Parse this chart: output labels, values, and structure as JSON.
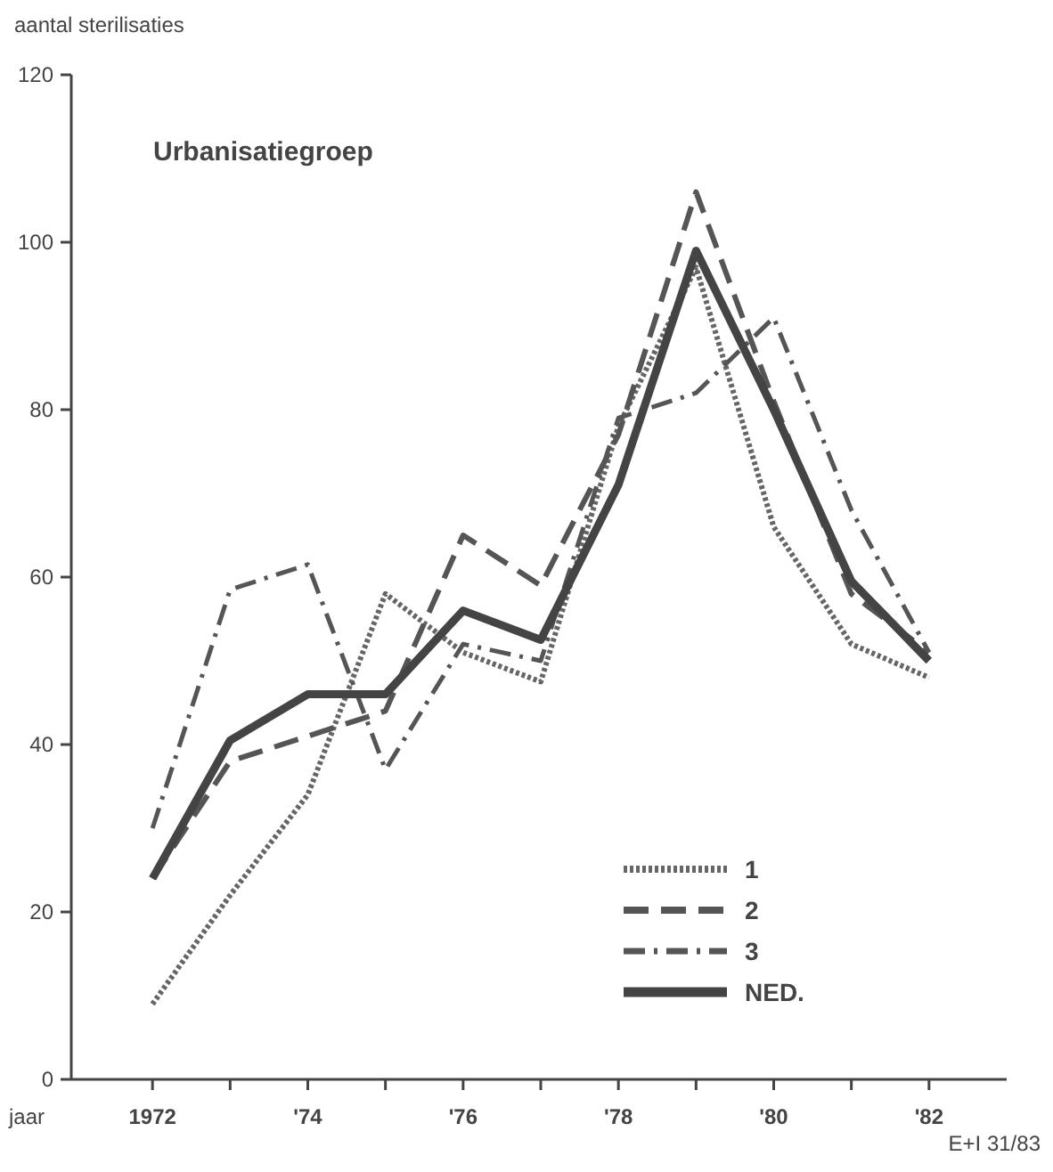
{
  "chart_data": {
    "type": "line",
    "ylabel": "aantal sterilisaties",
    "xlabel": "jaar",
    "legend_title": "Urbanisatiegroep",
    "x": [
      1972,
      1973,
      1974,
      1975,
      1976,
      1977,
      1978,
      1979,
      1980,
      1981,
      1982
    ],
    "xlim": [
      1971,
      1983
    ],
    "xticks": [
      {
        "value": 1972,
        "label": "1972"
      },
      {
        "value": 1973,
        "label": null
      },
      {
        "value": 1974,
        "label": "'74"
      },
      {
        "value": 1975,
        "label": null
      },
      {
        "value": 1976,
        "label": "'76"
      },
      {
        "value": 1977,
        "label": null
      },
      {
        "value": 1978,
        "label": "'78"
      },
      {
        "value": 1979,
        "label": null
      },
      {
        "value": 1980,
        "label": "'80"
      },
      {
        "value": 1981,
        "label": null
      },
      {
        "value": 1982,
        "label": "'82"
      }
    ],
    "ylim": [
      0,
      120
    ],
    "yticks": [
      0,
      20,
      40,
      60,
      80,
      100,
      120
    ],
    "legend": "bottom right",
    "annotations": [
      "E+I 31/83"
    ],
    "series": [
      {
        "name": "1",
        "color": "#666666",
        "line_style": "dotted",
        "values": [
          9,
          22,
          34,
          58,
          51,
          47.5,
          78,
          97,
          66,
          52,
          48
        ]
      },
      {
        "name": "2",
        "color": "#555555",
        "line_style": "dashed",
        "values": [
          24,
          38,
          41,
          44,
          65,
          59,
          77,
          106,
          81,
          58,
          51
        ]
      },
      {
        "name": "3",
        "color": "#555555",
        "line_style": "dashdot",
        "values": [
          30,
          58.5,
          61.5,
          37,
          52,
          50,
          79,
          82,
          91,
          68,
          51
        ]
      },
      {
        "name": "NED.",
        "color": "#444444",
        "line_style": "solid",
        "values": [
          24,
          40.5,
          46,
          46,
          56,
          52.5,
          71,
          99,
          80,
          59.5,
          50
        ]
      }
    ]
  }
}
